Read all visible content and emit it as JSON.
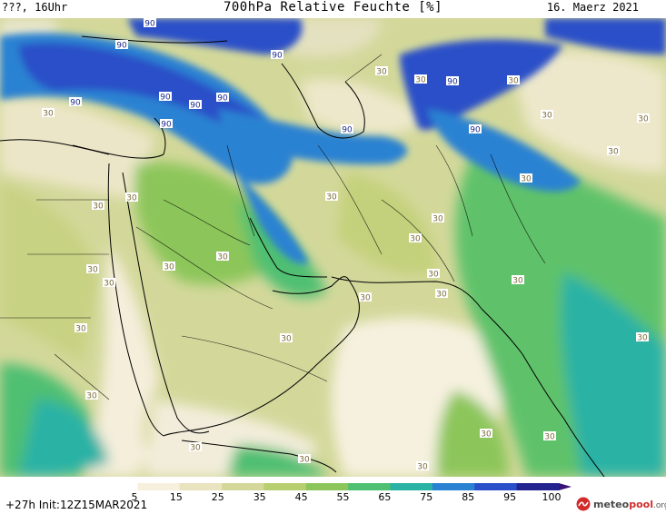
{
  "header": {
    "left": "???, 16Uhr",
    "title": "700hPa Relative Feuchte [%]",
    "date": "16. Maerz 2021"
  },
  "footer": {
    "run": "+27h  Init:12Z15MAR2021",
    "logo_main": "meteo",
    "logo_pool": "pool",
    "logo_org": ".org"
  },
  "colorbar": {
    "labels": [
      "5",
      "15",
      "25",
      "35",
      "45",
      "55",
      "65",
      "75",
      "85",
      "95",
      "100"
    ],
    "colors": [
      "#ffffff",
      "#f6f0dc",
      "#e9e3c0",
      "#d3d89a",
      "#b8cf6f",
      "#8cc65a",
      "#4fbf72",
      "#2ab2a5",
      "#2a82d2",
      "#2a4fc8",
      "#23238f",
      "#3b1276"
    ]
  },
  "contour_labels": {
    "ninety": "90",
    "thirty": "30"
  }
}
